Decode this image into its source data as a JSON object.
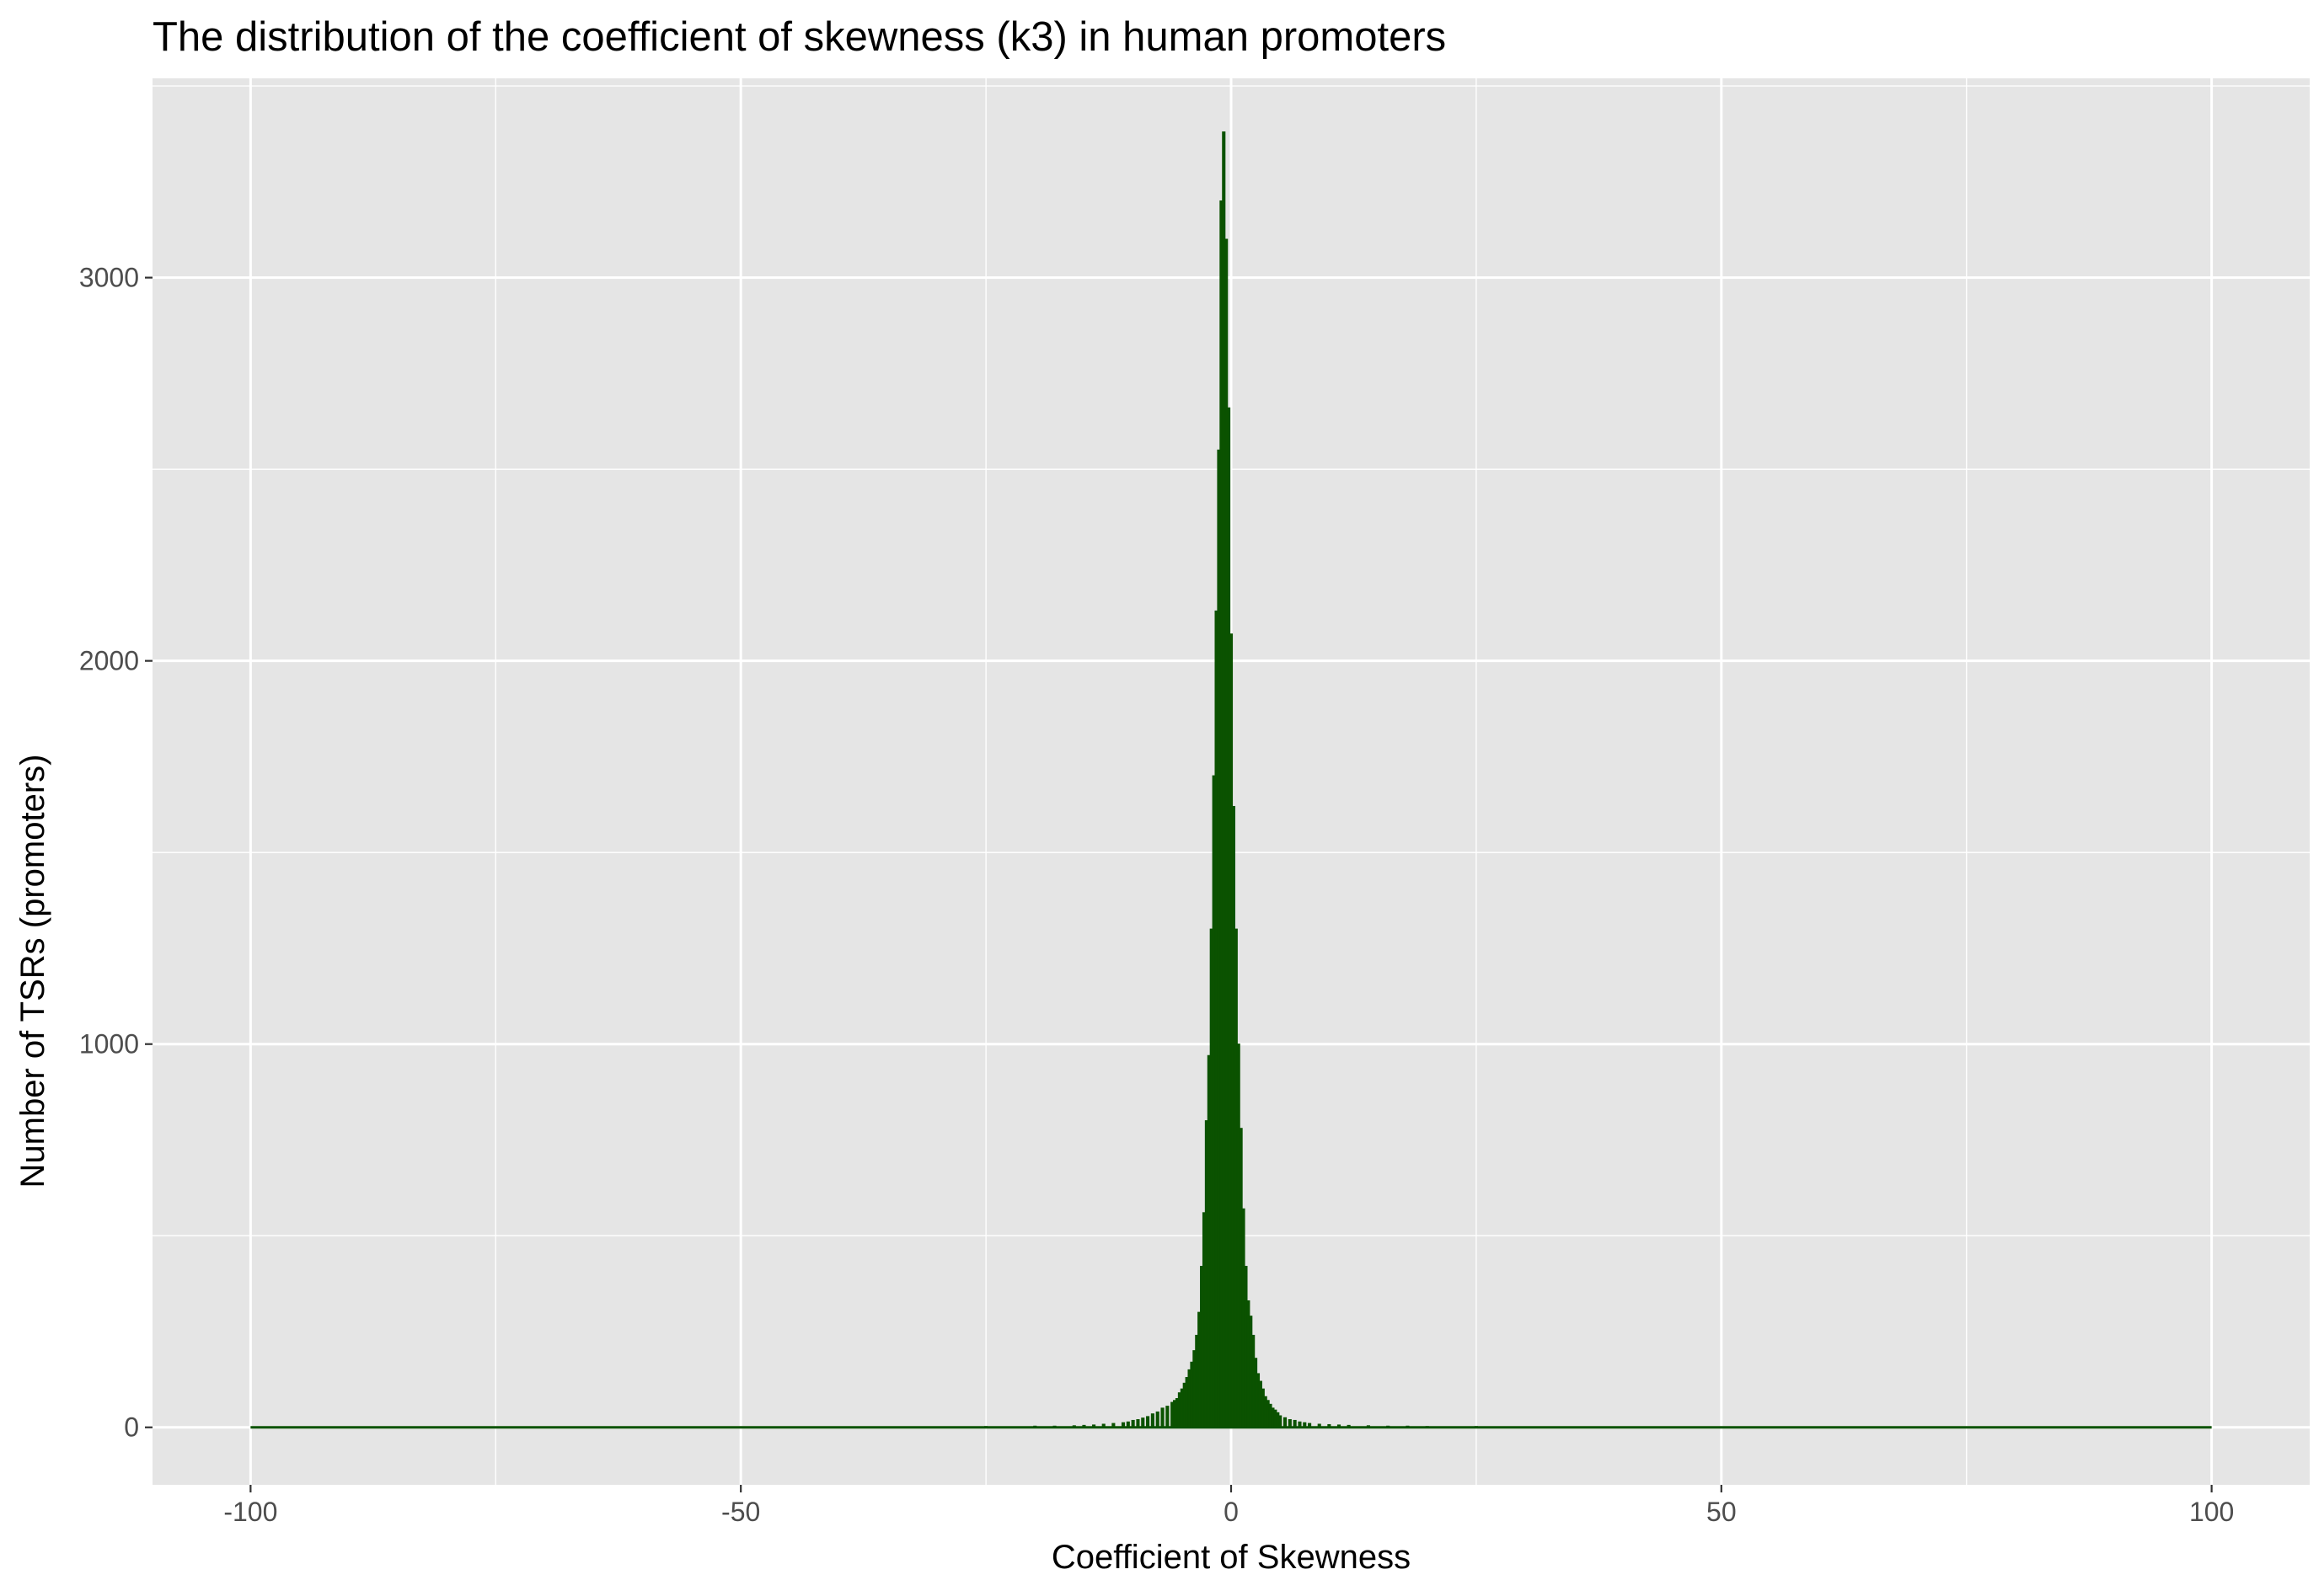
{
  "chart_data": {
    "type": "bar",
    "title": "The distribution of the coefficient of skewness (k3) in human promoters",
    "xlabel": "Coefficient of Skewness",
    "ylabel": "Number of TSRs (promoters)",
    "xlim": [
      -110,
      110
    ],
    "ylim": [
      -150,
      3520
    ],
    "x_ticks": [
      -100,
      -50,
      0,
      50,
      100
    ],
    "x_tick_labels": [
      "-100",
      "-50",
      "0",
      "50",
      "100"
    ],
    "y_ticks": [
      0,
      1000,
      2000,
      3000
    ],
    "y_tick_labels": [
      "0",
      "1000",
      "2000",
      "3000"
    ],
    "grid": true,
    "bin_width": 0.25,
    "fill_color": "#0b5200",
    "panel_background": "#e5e5e5",
    "grid_color": "#ffffff",
    "x": [
      -25,
      -20,
      -18,
      -16,
      -15,
      -14,
      -13,
      -12,
      -11,
      -10.5,
      -10,
      -9.5,
      -9,
      -8.5,
      -8,
      -7.5,
      -7,
      -6.5,
      -6,
      -5.75,
      -5.5,
      -5.25,
      -5,
      -4.75,
      -4.5,
      -4.25,
      -4,
      -3.75,
      -3.5,
      -3.25,
      -3,
      -2.75,
      -2.5,
      -2.25,
      -2,
      -1.75,
      -1.5,
      -1.25,
      -1,
      -0.75,
      -0.5,
      -0.25,
      0,
      0.25,
      0.5,
      0.75,
      1,
      1.25,
      1.5,
      1.75,
      2,
      2.25,
      2.5,
      2.75,
      3,
      3.25,
      3.5,
      3.75,
      4,
      4.25,
      4.5,
      4.75,
      5,
      5.5,
      6,
      6.5,
      7,
      7.5,
      8,
      9,
      10,
      11,
      12,
      14,
      16,
      18,
      20,
      25
    ],
    "values": [
      2,
      3,
      3,
      4,
      5,
      6,
      8,
      10,
      12,
      14,
      18,
      20,
      24,
      28,
      35,
      40,
      50,
      55,
      65,
      70,
      75,
      90,
      100,
      115,
      130,
      150,
      170,
      200,
      240,
      300,
      420,
      560,
      800,
      970,
      1300,
      1700,
      2130,
      2550,
      3200,
      3380,
      3100,
      2660,
      2070,
      1620,
      1300,
      1000,
      780,
      570,
      420,
      330,
      290,
      240,
      180,
      140,
      120,
      100,
      80,
      70,
      60,
      50,
      45,
      38,
      30,
      25,
      20,
      18,
      14,
      12,
      10,
      8,
      7,
      6,
      5,
      4,
      3,
      3,
      2,
      2
    ]
  }
}
